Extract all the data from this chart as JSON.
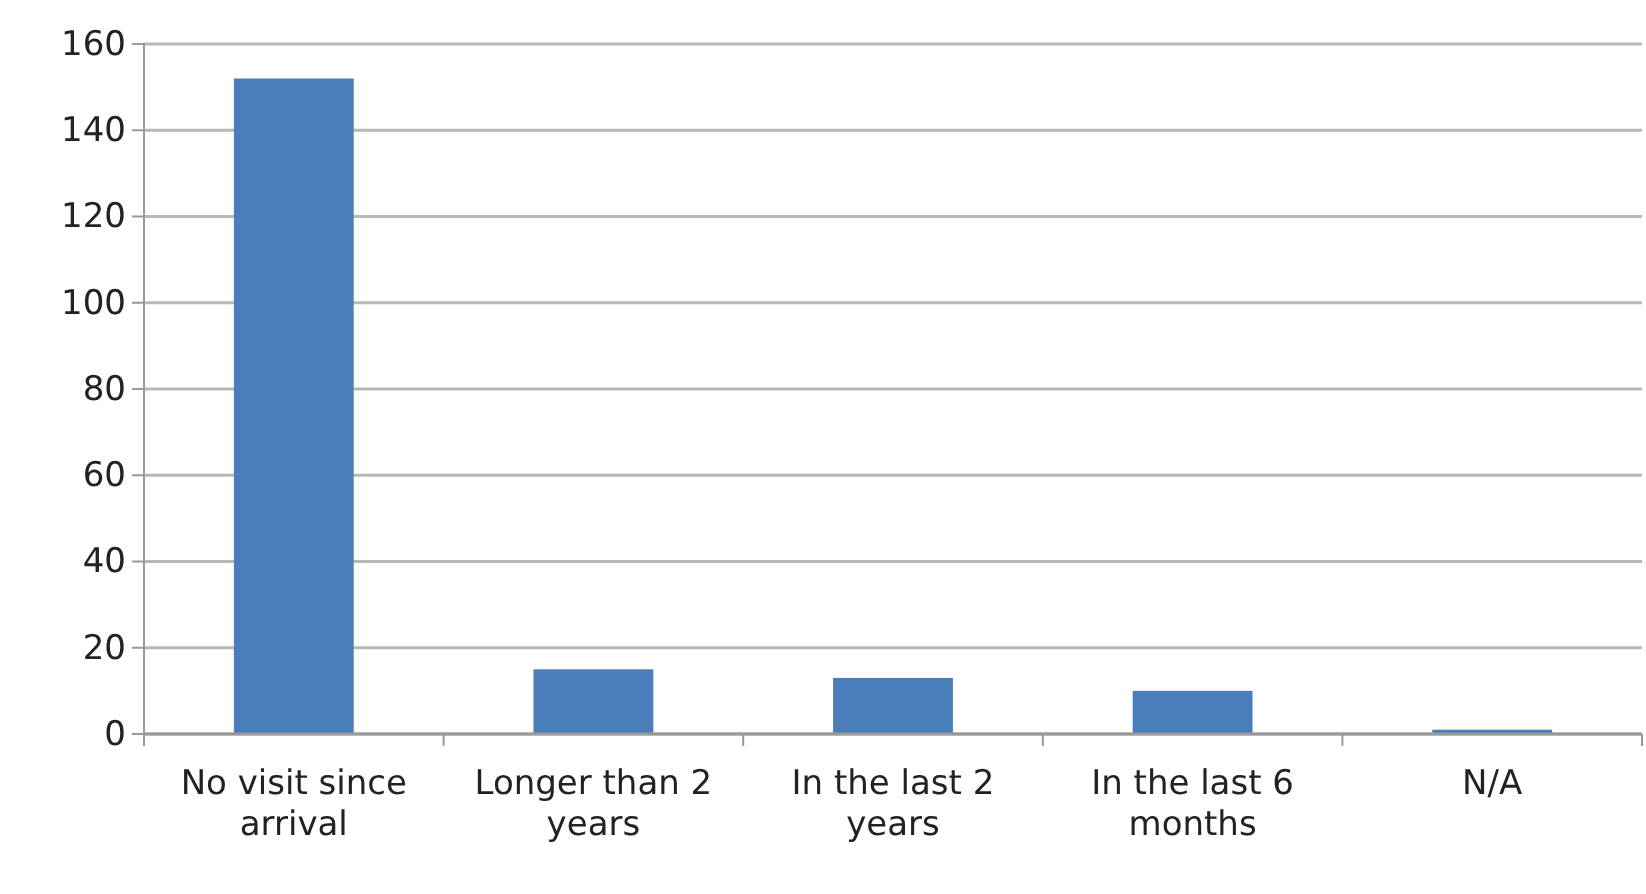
{
  "chart_data": {
    "type": "bar",
    "categories": [
      "No visit since arrival",
      "Longer than 2 years",
      "In the last 2 years",
      "In the last 6 months",
      "N/A"
    ],
    "values": [
      152,
      15,
      13,
      10,
      1
    ],
    "color": "#4a7ebb",
    "ylim": [
      0,
      160
    ],
    "yticks": [
      0,
      20,
      40,
      60,
      80,
      100,
      120,
      140,
      160
    ],
    "grid": "y"
  }
}
